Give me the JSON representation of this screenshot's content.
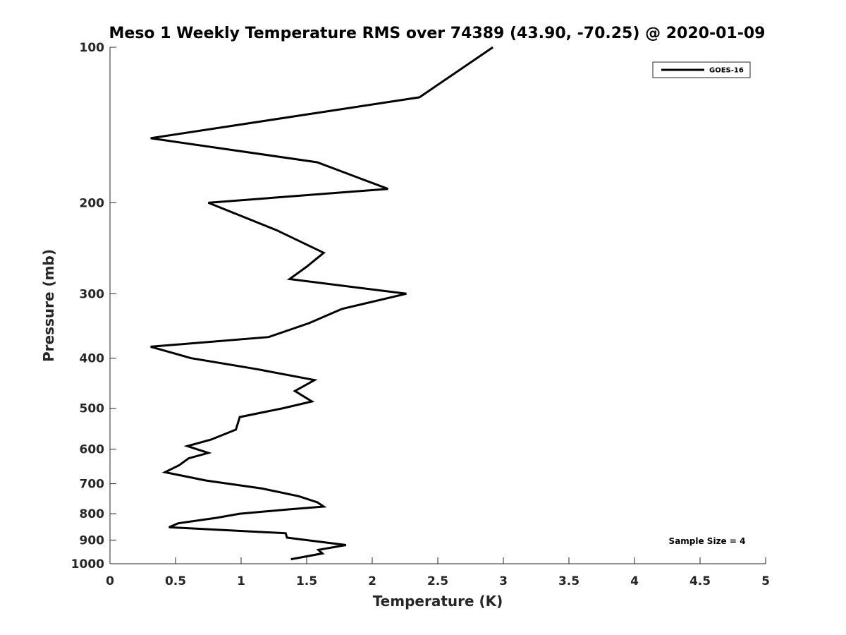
{
  "chart_data": {
    "type": "line",
    "title": "Meso 1 Weekly Temperature RMS over 74389 (43.90, -70.25) @ 2020-01-09",
    "xlabel": "Temperature (K)",
    "ylabel": "Pressure (mb)",
    "xlim": [
      0,
      5
    ],
    "ylim": [
      100,
      1000
    ],
    "y_scale": "log",
    "y_reversed": true,
    "x_ticks": [
      "0",
      "0.5",
      "1",
      "1.5",
      "2",
      "2.5",
      "3",
      "3.5",
      "4",
      "4.5",
      "5"
    ],
    "x_tick_values": [
      0,
      0.5,
      1,
      1.5,
      2,
      2.5,
      3,
      3.5,
      4,
      4.5,
      5
    ],
    "y_ticks": [
      "100",
      "200",
      "300",
      "400",
      "500",
      "600",
      "700",
      "800",
      "900",
      "1000"
    ],
    "y_tick_values": [
      100,
      200,
      300,
      400,
      500,
      600,
      700,
      800,
      900,
      1000
    ],
    "grid": false,
    "legend_position": "top-right",
    "annotation": "Sample Size = 4",
    "series": [
      {
        "name": "GOES-16",
        "color": "#000000",
        "x": [
          2.92,
          2.36,
          0.31,
          1.58,
          2.12,
          0.75,
          1.27,
          1.63,
          1.5,
          1.37,
          2.26,
          1.77,
          1.52,
          1.21,
          0.31,
          0.62,
          1.12,
          1.56,
          1.41,
          1.54,
          1.32,
          0.99,
          0.97,
          0.96,
          0.77,
          0.59,
          0.75,
          0.6,
          0.53,
          0.42,
          0.73,
          1.16,
          1.44,
          1.58,
          1.63,
          1.36,
          0.99,
          0.81,
          0.52,
          0.45,
          1.34,
          1.35,
          1.8,
          1.59,
          1.62,
          1.38
        ],
        "y": [
          100,
          125,
          150,
          167,
          188,
          200,
          226,
          250,
          266,
          281,
          300,
          321,
          342,
          364,
          380,
          400,
          420,
          441,
          463,
          485,
          500,
          520,
          540,
          550,
          575,
          592,
          610,
          625,
          644,
          665,
          690,
          715,
          740,
          760,
          775,
          785,
          800,
          815,
          835,
          850,
          873,
          890,
          920,
          940,
          955,
          980
        ]
      }
    ]
  }
}
